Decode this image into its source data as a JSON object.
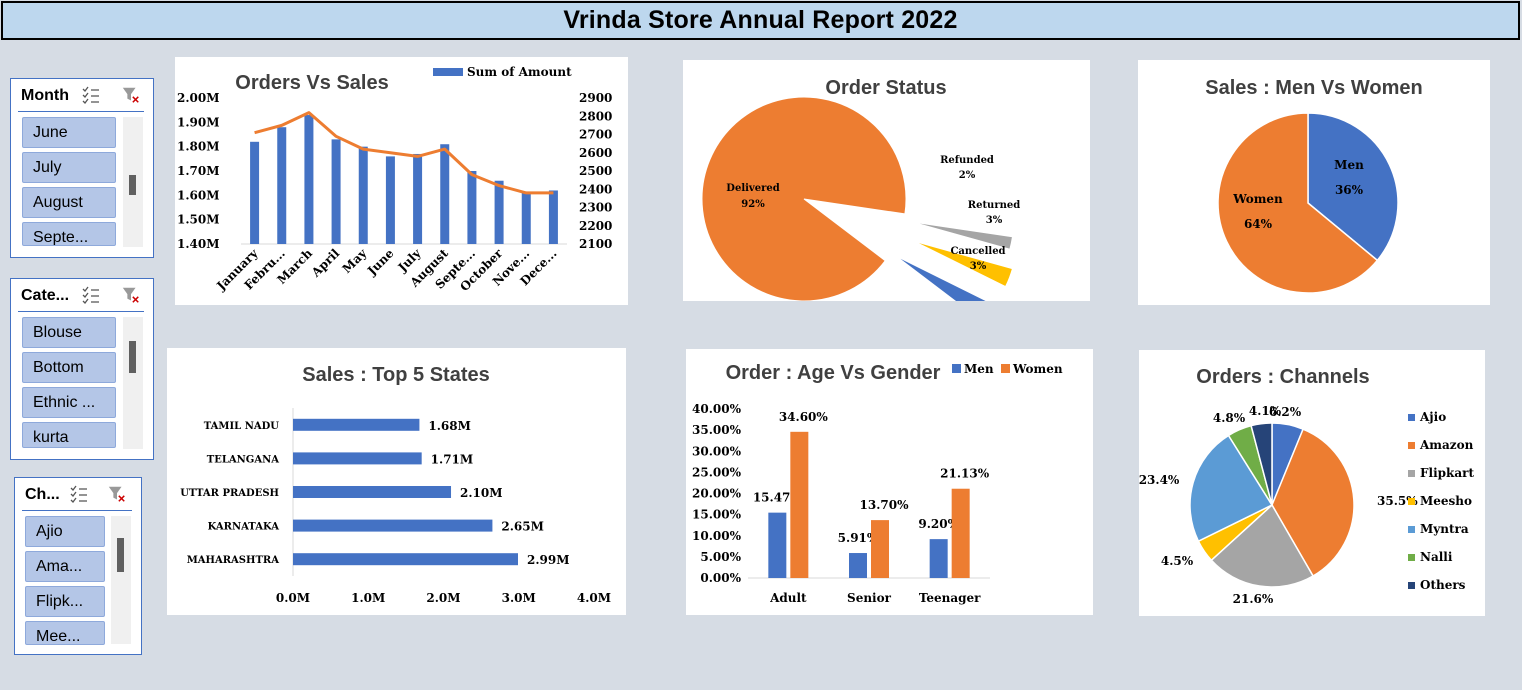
{
  "report_title": "Vrinda Store Annual Report 2022",
  "slicers": [
    {
      "title": "Month",
      "items": [
        "June",
        "July",
        "August",
        "Septe..."
      ]
    },
    {
      "title": "Cate...",
      "items": [
        "Blouse",
        "Bottom",
        "Ethnic ...",
        "kurta"
      ]
    },
    {
      "title": "Ch...",
      "items": [
        "Ajio",
        "Ama...",
        "Flipk...",
        "Mee..."
      ]
    }
  ],
  "chart_data": [
    {
      "id": "orders_vs_sales",
      "type": "bar",
      "title": "Orders Vs Sales",
      "legend": "Sum of Amount",
      "categories": [
        "January",
        "Febru...",
        "March",
        "April",
        "May",
        "June",
        "July",
        "August",
        "Septe...",
        "October",
        "Nove...",
        "Dece..."
      ],
      "series": [
        {
          "name": "Sum of Amount",
          "type": "bar",
          "axis": "left",
          "values": [
            1.82,
            1.88,
            1.93,
            1.83,
            1.8,
            1.76,
            1.77,
            1.81,
            1.7,
            1.66,
            1.61,
            1.62
          ]
        },
        {
          "type": "line",
          "axis": "right",
          "values": [
            2710,
            2750,
            2820,
            2690,
            2620,
            2600,
            2580,
            2620,
            2480,
            2420,
            2380,
            2380
          ]
        }
      ],
      "y_ticks": [
        "2.00M",
        "1.90M",
        "1.80M",
        "1.70M",
        "1.60M",
        "1.50M",
        "1.40M"
      ],
      "ylim": [
        1.4,
        2.0
      ],
      "y2_ticks": [
        "2900",
        "2800",
        "2700",
        "2600",
        "2500",
        "2400",
        "2300",
        "2200",
        "2100"
      ],
      "y2lim": [
        2100,
        2900
      ]
    },
    {
      "id": "order_status",
      "type": "pie",
      "title": "Order Status",
      "slices": [
        {
          "label": "Delivered",
          "value": 92,
          "text": "92%",
          "color": "#ed7d31"
        },
        {
          "label": "Refunded",
          "value": 2,
          "text": "2%",
          "color": "#a5a5a5"
        },
        {
          "label": "Returned",
          "value": 3,
          "text": "3%",
          "color": "#ffc000"
        },
        {
          "label": "Cancelled",
          "value": 3,
          "text": "3%",
          "color": "#4472c4"
        }
      ]
    },
    {
      "id": "men_vs_women",
      "type": "pie",
      "title": "Sales : Men Vs Women",
      "slices": [
        {
          "label": "Men",
          "value": 36,
          "text": "36%",
          "color": "#4472c4"
        },
        {
          "label": "Women",
          "value": 64,
          "text": "64%",
          "color": "#ed7d31"
        }
      ]
    },
    {
      "id": "top5_states",
      "type": "bar",
      "orientation": "horizontal",
      "title": "Sales : Top 5 States",
      "categories": [
        "TAMIL NADU",
        "TELANGANA",
        "UTTAR PRADESH",
        "KARNATAKA",
        "MAHARASHTRA"
      ],
      "values": [
        1.68,
        1.71,
        2.1,
        2.65,
        2.99
      ],
      "labels": [
        "1.68M",
        "1.71M",
        "2.10M",
        "2.65M",
        "2.99M"
      ],
      "x_ticks": [
        "0.0M",
        "1.0M",
        "2.0M",
        "3.0M",
        "4.0M"
      ],
      "xlim": [
        0,
        4
      ]
    },
    {
      "id": "age_vs_gender",
      "type": "bar",
      "title": "Order : Age Vs Gender",
      "categories": [
        "Adult",
        "Senior",
        "Teenager"
      ],
      "series": [
        {
          "name": "Men",
          "values": [
            15.47,
            5.91,
            9.2
          ],
          "labels": [
            "15.47%",
            "5.91%",
            "9.20%"
          ],
          "color": "#4472c4"
        },
        {
          "name": "Women",
          "values": [
            34.6,
            13.7,
            21.13
          ],
          "labels": [
            "34.60%",
            "13.70%",
            "21.13%"
          ],
          "color": "#ed7d31"
        }
      ],
      "y_ticks": [
        "40.00%",
        "35.00%",
        "30.00%",
        "25.00%",
        "20.00%",
        "15.00%",
        "10.00%",
        "5.00%",
        "0.00%"
      ],
      "ylim": [
        0,
        40
      ]
    },
    {
      "id": "channels",
      "type": "pie",
      "title": "Orders : Channels",
      "slices": [
        {
          "label": "Ajio",
          "value": 6.2,
          "text": "6.2%",
          "color": "#4472c4"
        },
        {
          "label": "Amazon",
          "value": 35.5,
          "text": "35.5%",
          "color": "#ed7d31"
        },
        {
          "label": "Flipkart",
          "value": 21.6,
          "text": "21.6%",
          "color": "#a5a5a5"
        },
        {
          "label": "Meesho",
          "value": 4.5,
          "text": "4.5%",
          "color": "#ffc000"
        },
        {
          "label": "Myntra",
          "value": 23.4,
          "text": "23.4%",
          "color": "#5b9bd5"
        },
        {
          "label": "Nalli",
          "value": 4.8,
          "text": "4.8%",
          "color": "#70ad47"
        },
        {
          "label": "Others",
          "value": 4.1,
          "text": "4.1%",
          "color": "#264478"
        }
      ]
    }
  ]
}
